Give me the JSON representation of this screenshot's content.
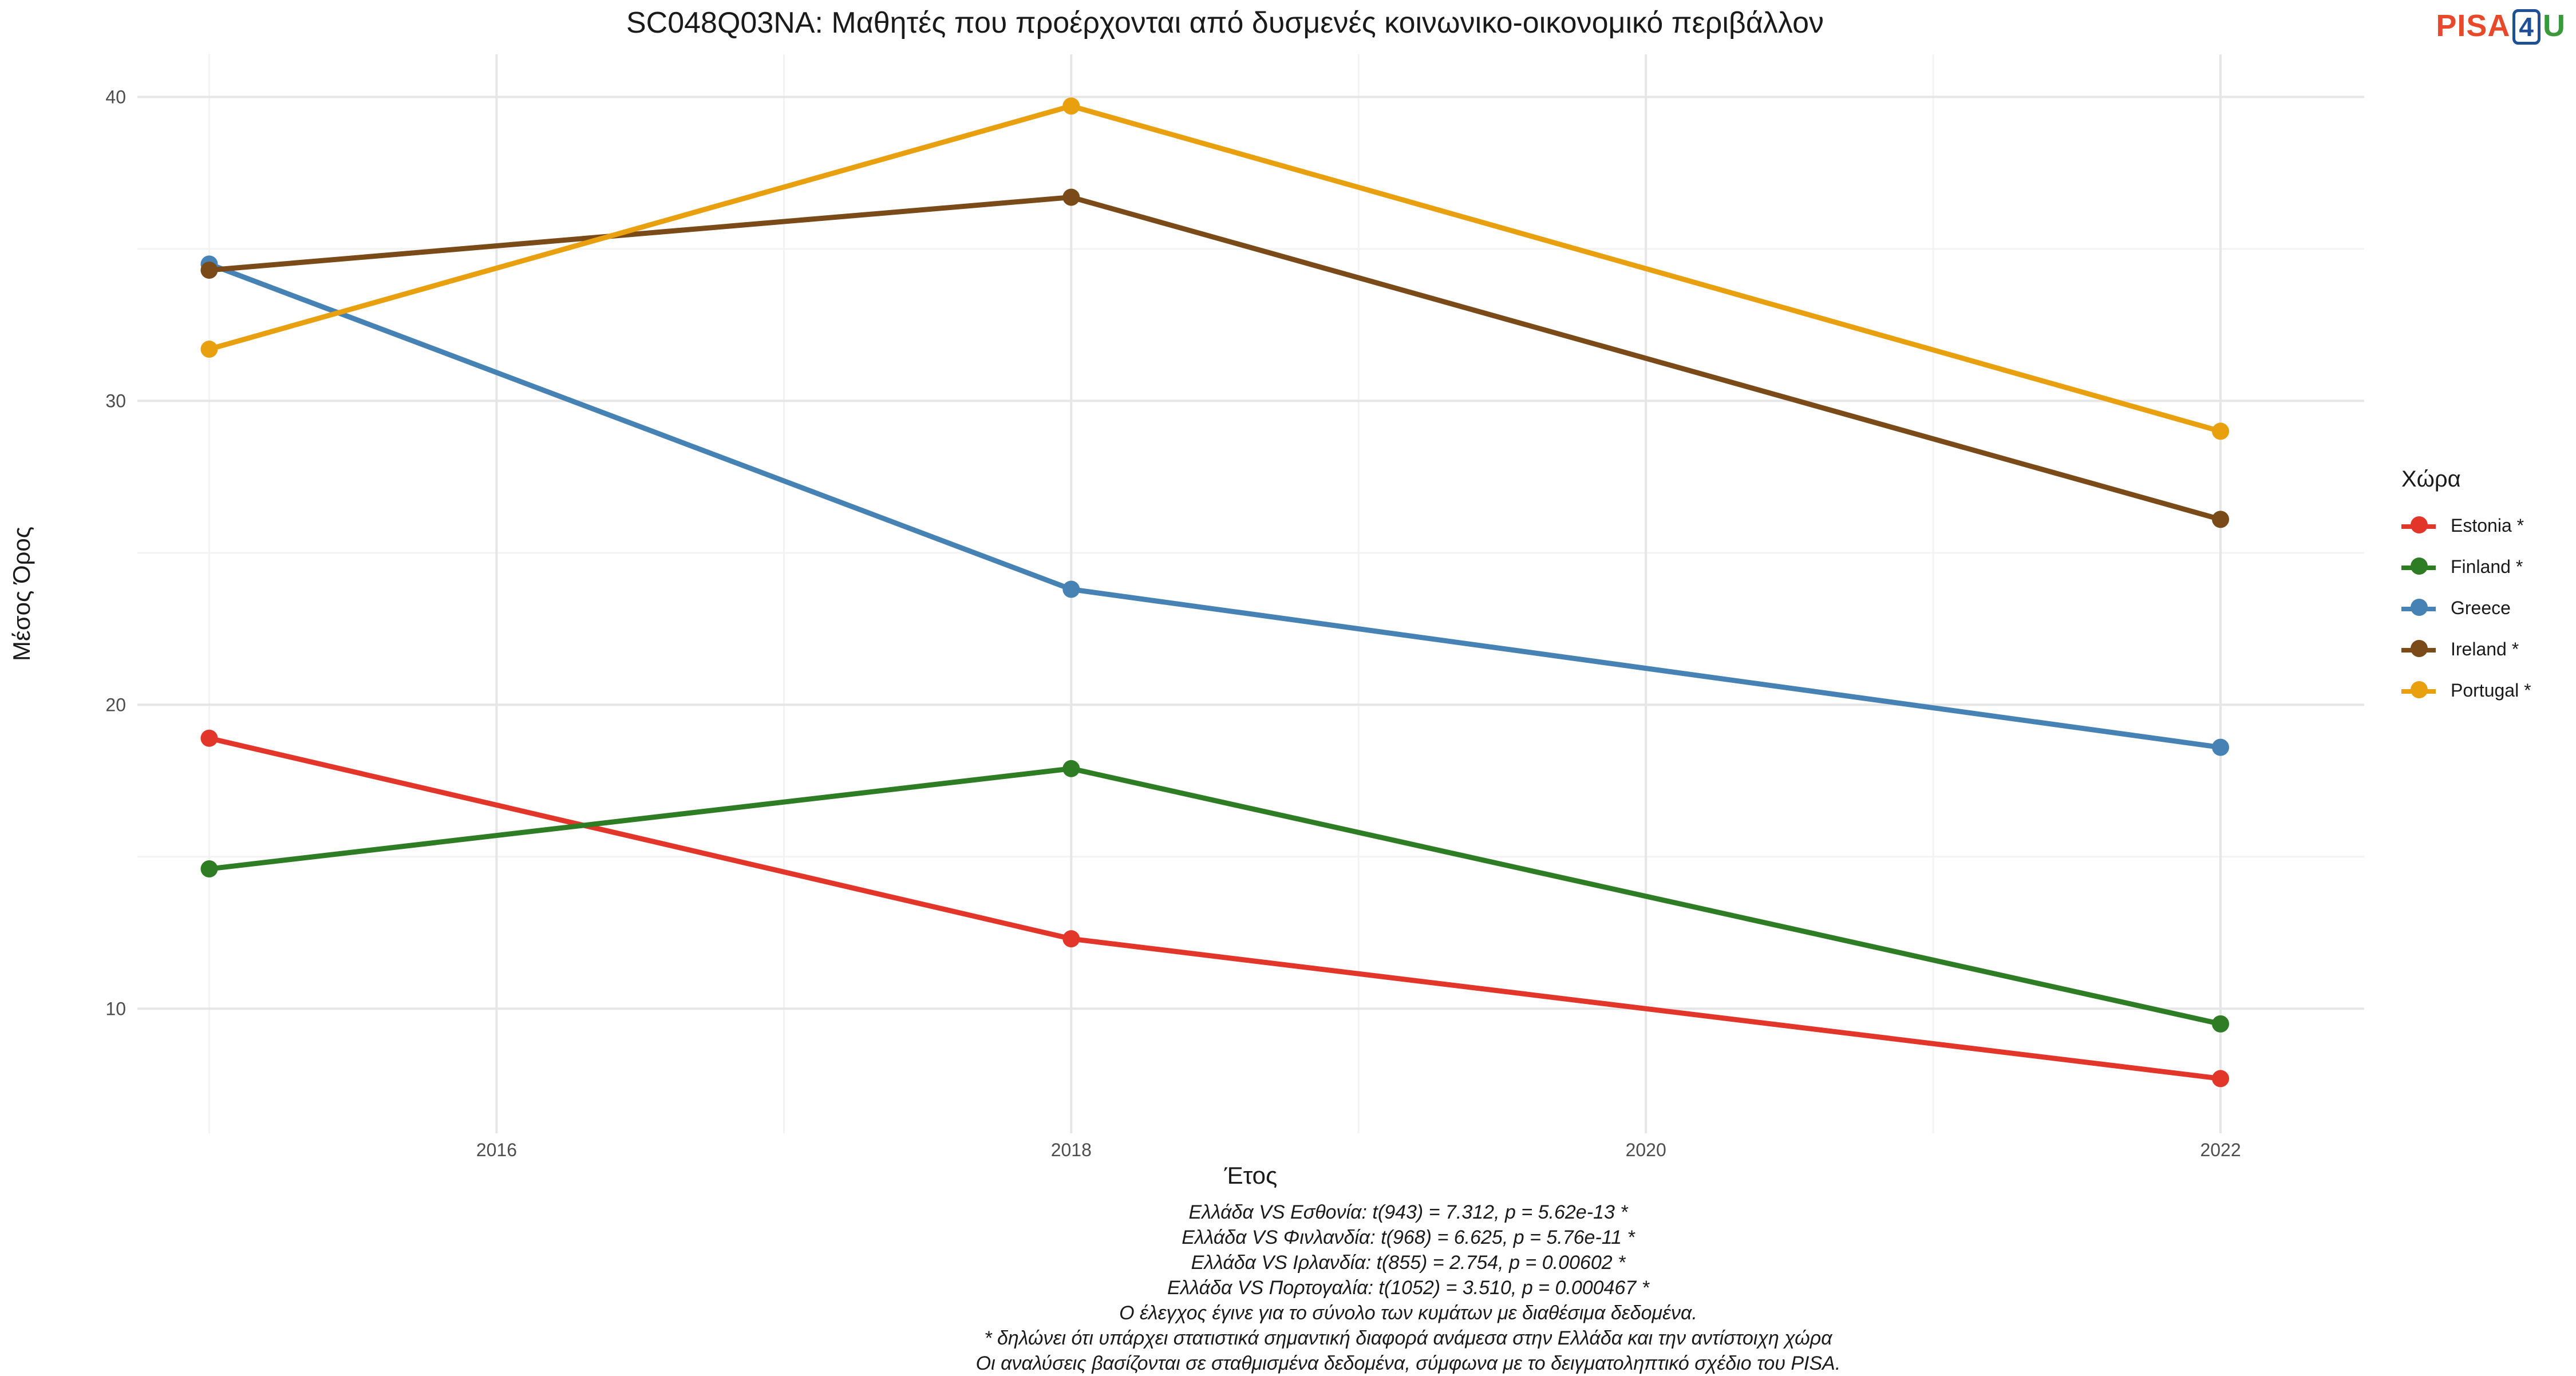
{
  "title": "SC048Q03NA: Μαθητές που προέρχονται από δυσμενές κοινωνικο-οικονομικό περιβάλλον",
  "logo": {
    "part1": "PISA",
    "part2": "4",
    "part3": "U"
  },
  "legend": {
    "title": "Χώρα",
    "items": [
      {
        "label": "Estonia *",
        "color": "#e3362b"
      },
      {
        "label": "Finland *",
        "color": "#2e7d24"
      },
      {
        "label": "Greece",
        "color": "#4682b4"
      },
      {
        "label": "Ireland *",
        "color": "#7a4a19"
      },
      {
        "label": "Portugal *",
        "color": "#e8a00f"
      }
    ]
  },
  "footnotes": [
    "Ελλάδα VS Εσθονία: t(943) = 7.312, p = 5.62e-13 *",
    "Ελλάδα VS Φινλανδία: t(968) = 6.625, p = 5.76e-11 *",
    "Ελλάδα VS Ιρλανδία: t(855) = 2.754, p = 0.00602 *",
    "Ελλάδα VS Πορτογαλία: t(1052) = 3.510, p = 0.000467 *",
    "Ο έλεγχος έγινε για το σύνολο των κυμάτων με διαθέσιμα δεδομένα.",
    "* δηλώνει ότι υπάρχει στατιστικά σημαντική διαφορά ανάμεσα στην Ελλάδα και την αντίστοιχη χώρα",
    "Οι αναλύσεις βασίζονται σε σταθμισμένα δεδομένα, σύμφωνα με το δειγματοληπτικό σχέδιο του PISA."
  ],
  "chart_data": {
    "type": "line",
    "title": "SC048Q03NA: Μαθητές που προέρχονται από δυσμενές κοινωνικο-οικονομικό περιβάλλον",
    "xlabel": "Έτος",
    "ylabel": "Μέσος Όρος",
    "x": [
      2015,
      2018,
      2022
    ],
    "xlim": [
      2014.75,
      2022.5
    ],
    "ylim": [
      5.9,
      41.4
    ],
    "xticks": [
      2016,
      2018,
      2020,
      2022
    ],
    "yticks": [
      10,
      20,
      30,
      40
    ],
    "grid": true,
    "legend_position": "right",
    "series": [
      {
        "name": "Estonia *",
        "color": "#e3362b",
        "values": [
          18.9,
          12.3,
          7.7
        ]
      },
      {
        "name": "Finland *",
        "color": "#2e7d24",
        "values": [
          14.6,
          17.9,
          9.5
        ]
      },
      {
        "name": "Greece",
        "color": "#4682b4",
        "values": [
          34.5,
          23.8,
          18.6
        ]
      },
      {
        "name": "Ireland *",
        "color": "#7a4a19",
        "values": [
          34.3,
          36.7,
          26.1
        ]
      },
      {
        "name": "Portugal *",
        "color": "#e8a00f",
        "values": [
          31.7,
          39.7,
          29.0
        ]
      }
    ]
  }
}
